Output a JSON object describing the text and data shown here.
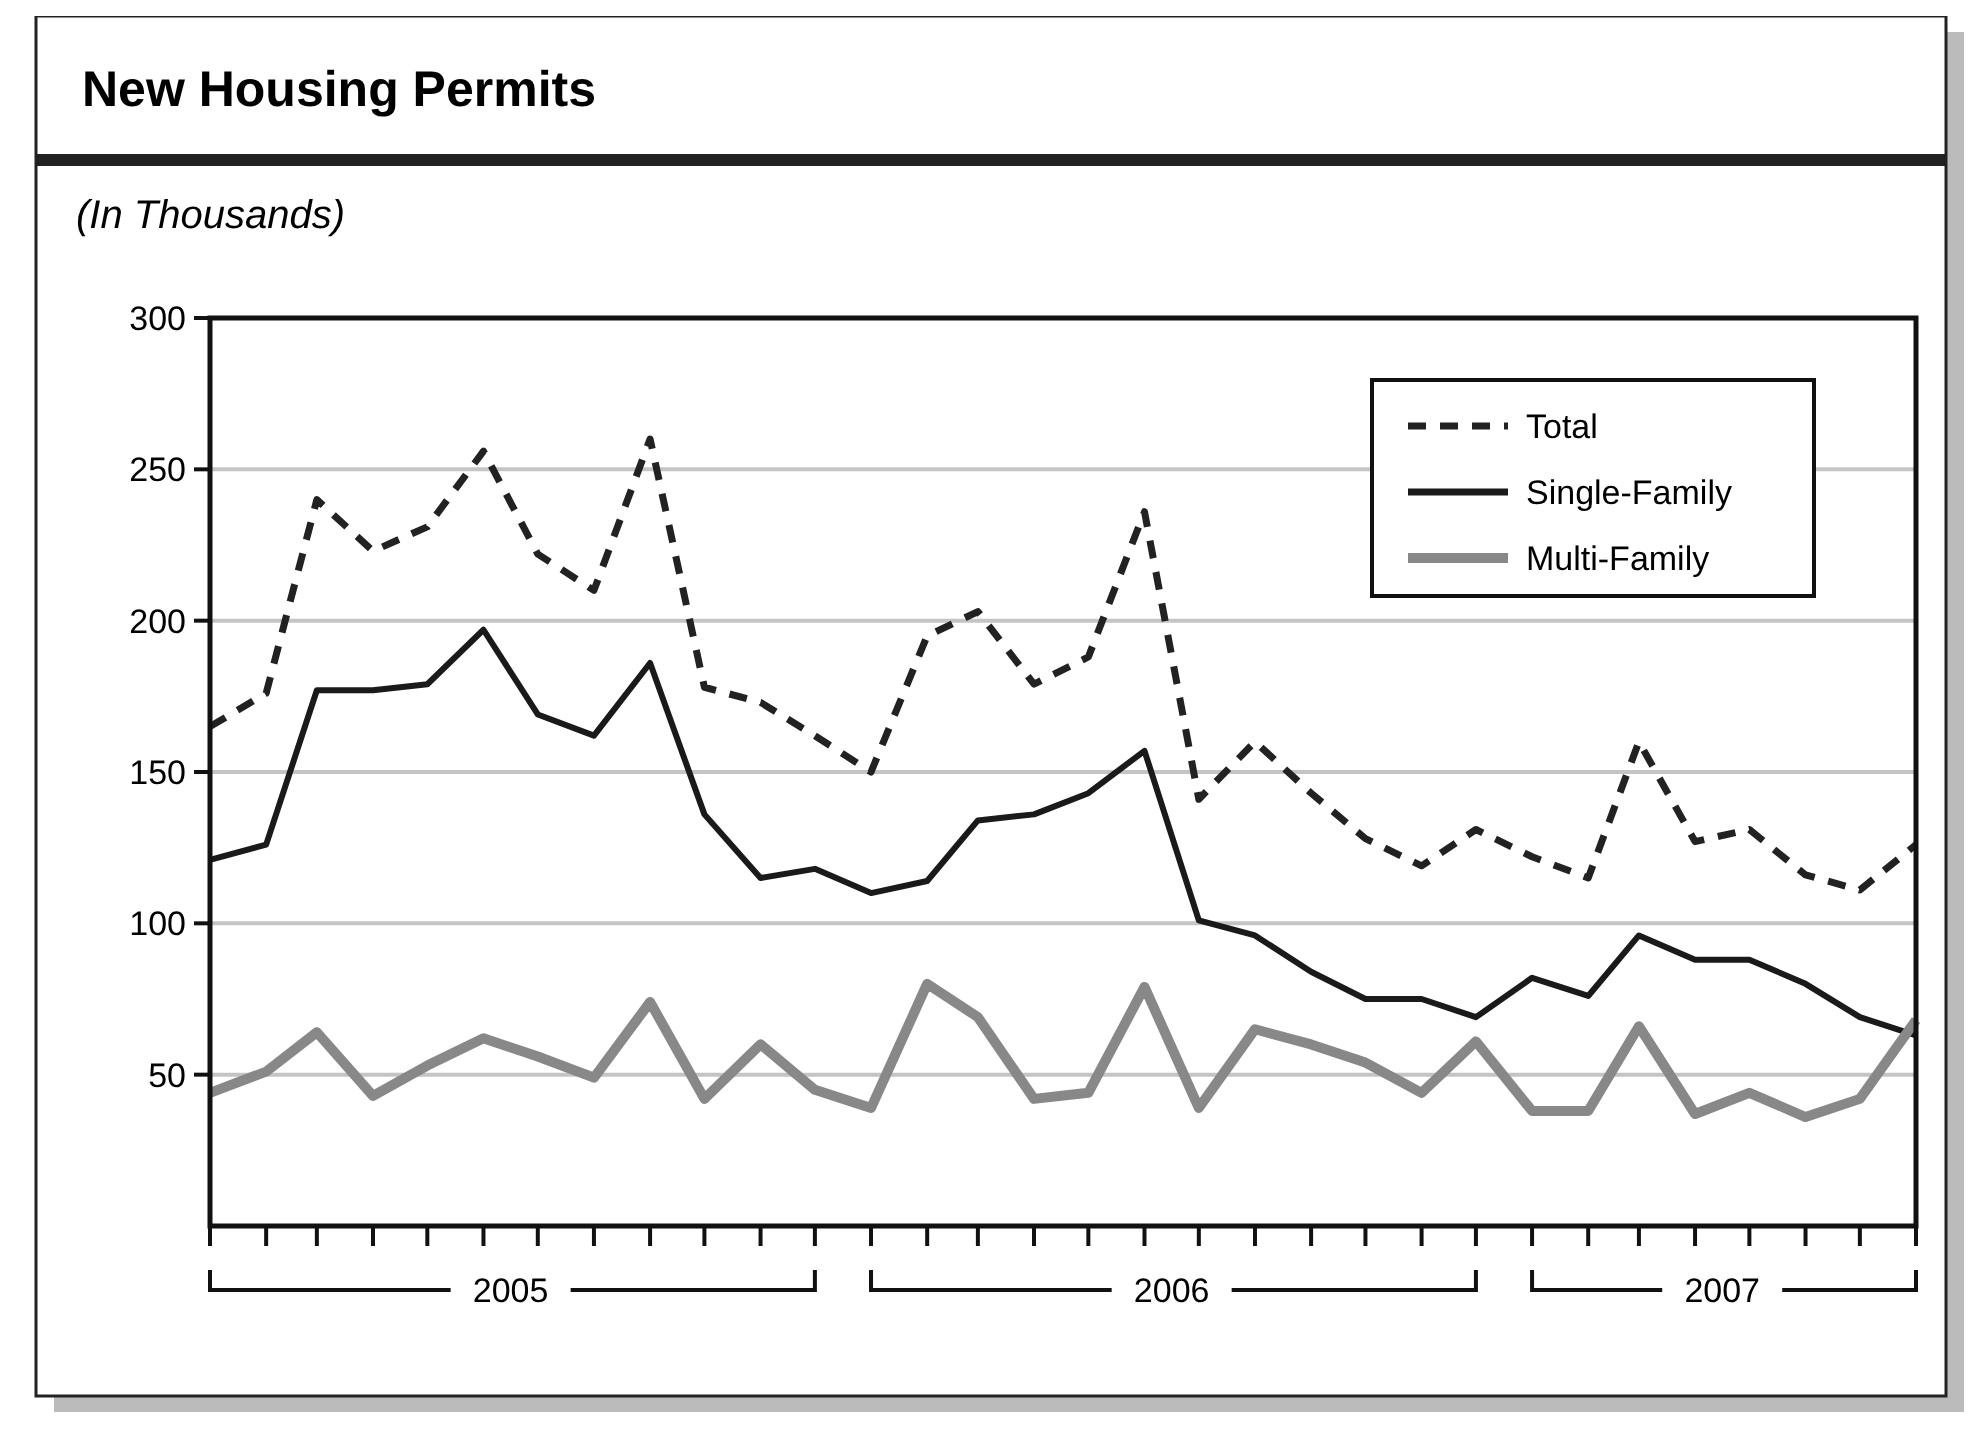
{
  "chart_data": {
    "type": "line",
    "title": "New Housing Permits",
    "subtitle": "(In Thousands)",
    "x": [
      "2005-01",
      "2005-02",
      "2005-03",
      "2005-04",
      "2005-05",
      "2005-06",
      "2005-07",
      "2005-08",
      "2005-09",
      "2005-10",
      "2005-11",
      "2005-12",
      "2006-01",
      "2006-02",
      "2006-03",
      "2006-04",
      "2006-05",
      "2006-06",
      "2006-07",
      "2006-08",
      "2006-09",
      "2006-10",
      "2006-11",
      "2006-12",
      "2007-01",
      "2007-02",
      "2007-03",
      "2007-04",
      "2007-05",
      "2007-06",
      "2007-07",
      "2007-08"
    ],
    "series": [
      {
        "name": "Total",
        "color": "#222222",
        "line_style": "dashed",
        "values": [
          165,
          176,
          240,
          223,
          231,
          256,
          222,
          210,
          260,
          178,
          173,
          162,
          150,
          195,
          203,
          179,
          188,
          236,
          141,
          160,
          143,
          128,
          119,
          131,
          122,
          115,
          160,
          127,
          131,
          116,
          111,
          126
        ]
      },
      {
        "name": "Single-Family",
        "color": "#1a1a1a",
        "line_style": "solid",
        "values": [
          121,
          126,
          177,
          177,
          179,
          197,
          169,
          162,
          186,
          136,
          115,
          118,
          110,
          114,
          134,
          136,
          143,
          157,
          101,
          96,
          84,
          75,
          75,
          69,
          82,
          76,
          96,
          88,
          88,
          80,
          69,
          63
        ]
      },
      {
        "name": "Multi-Family",
        "color": "#888888",
        "line_style": "solid",
        "values": [
          44,
          51,
          64,
          43,
          53,
          62,
          56,
          49,
          74,
          42,
          60,
          45,
          39,
          80,
          69,
          42,
          44,
          79,
          39,
          65,
          60,
          54,
          44,
          61,
          38,
          38,
          66,
          37,
          44,
          36,
          42,
          68
        ]
      }
    ],
    "xlim": [
      "2005-01",
      "2007-08"
    ],
    "xticks": [
      {
        "value": "2005-01",
        "label": null
      },
      {
        "value": "2005-02",
        "label": null
      },
      {
        "value": "2005-03",
        "label": null
      },
      {
        "value": "2005-04",
        "label": null
      },
      {
        "value": "2005-05",
        "label": null
      },
      {
        "value": "2005-06",
        "label": null
      },
      {
        "value": "2005-07",
        "label": null
      },
      {
        "value": "2005-08",
        "label": null
      },
      {
        "value": "2005-09",
        "label": null
      },
      {
        "value": "2005-10",
        "label": null
      },
      {
        "value": "2005-11",
        "label": null
      },
      {
        "value": "2005-12",
        "label": null
      },
      {
        "value": "2006-01",
        "label": null
      },
      {
        "value": "2006-02",
        "label": null
      },
      {
        "value": "2006-03",
        "label": null
      },
      {
        "value": "2006-04",
        "label": null
      },
      {
        "value": "2006-05",
        "label": null
      },
      {
        "value": "2006-06",
        "label": null
      },
      {
        "value": "2006-07",
        "label": null
      },
      {
        "value": "2006-08",
        "label": null
      },
      {
        "value": "2006-09",
        "label": null
      },
      {
        "value": "2006-10",
        "label": null
      },
      {
        "value": "2006-11",
        "label": null
      },
      {
        "value": "2006-12",
        "label": null
      },
      {
        "value": "2007-01",
        "label": null
      },
      {
        "value": "2007-02",
        "label": null
      },
      {
        "value": "2007-03",
        "label": null
      },
      {
        "value": "2007-04",
        "label": null
      },
      {
        "value": "2007-05",
        "label": null
      },
      {
        "value": "2007-06",
        "label": null
      },
      {
        "value": "2007-07",
        "label": null
      },
      {
        "value": "2007-08",
        "label": null
      },
      {
        "value": "2005-06-16",
        "label": "2005"
      },
      {
        "value": "2006-06-16",
        "label": "2006"
      },
      {
        "value": "2007-04-16",
        "label": "2007"
      }
    ],
    "ylim": [
      0,
      300
    ],
    "yticks": [
      50,
      100,
      150,
      200,
      250,
      300
    ],
    "grid": "y",
    "legend": "top right"
  }
}
